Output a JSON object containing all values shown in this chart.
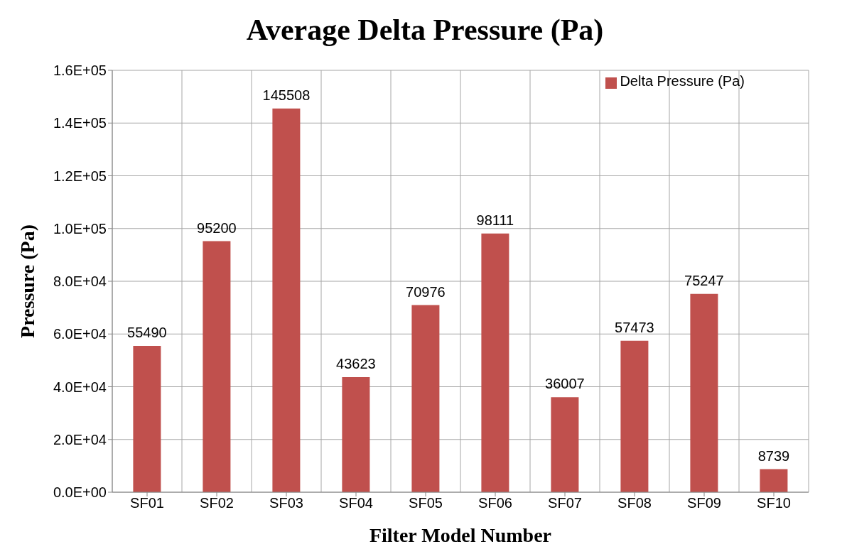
{
  "chart_data": {
    "type": "bar",
    "title": "Average Delta Pressure (Pa)",
    "xlabel": "Filter Model Number",
    "ylabel": "Pressure (Pa)",
    "categories": [
      "SF01",
      "SF02",
      "SF03",
      "SF04",
      "SF05",
      "SF06",
      "SF07",
      "SF08",
      "SF09",
      "SF10"
    ],
    "series": [
      {
        "name": "Delta Pressure (Pa)",
        "color": "#c0504d",
        "values": [
          55490,
          95200,
          145508,
          43623,
          70976,
          98111,
          36007,
          57473,
          75247,
          8739
        ]
      }
    ],
    "ylim": [
      0,
      160000
    ],
    "yticks": [
      {
        "value": 0,
        "label": "0.0E+00"
      },
      {
        "value": 20000,
        "label": "2.0E+04"
      },
      {
        "value": 40000,
        "label": "4.0E+04"
      },
      {
        "value": 60000,
        "label": "6.0E+04"
      },
      {
        "value": 80000,
        "label": "8.0E+04"
      },
      {
        "value": 100000,
        "label": "1.0E+05"
      },
      {
        "value": 120000,
        "label": "1.2E+05"
      },
      {
        "value": 140000,
        "label": "1.4E+05"
      },
      {
        "value": 160000,
        "label": "1.6E+05"
      }
    ],
    "grid": true,
    "legend": "top right",
    "data_labels": true
  }
}
